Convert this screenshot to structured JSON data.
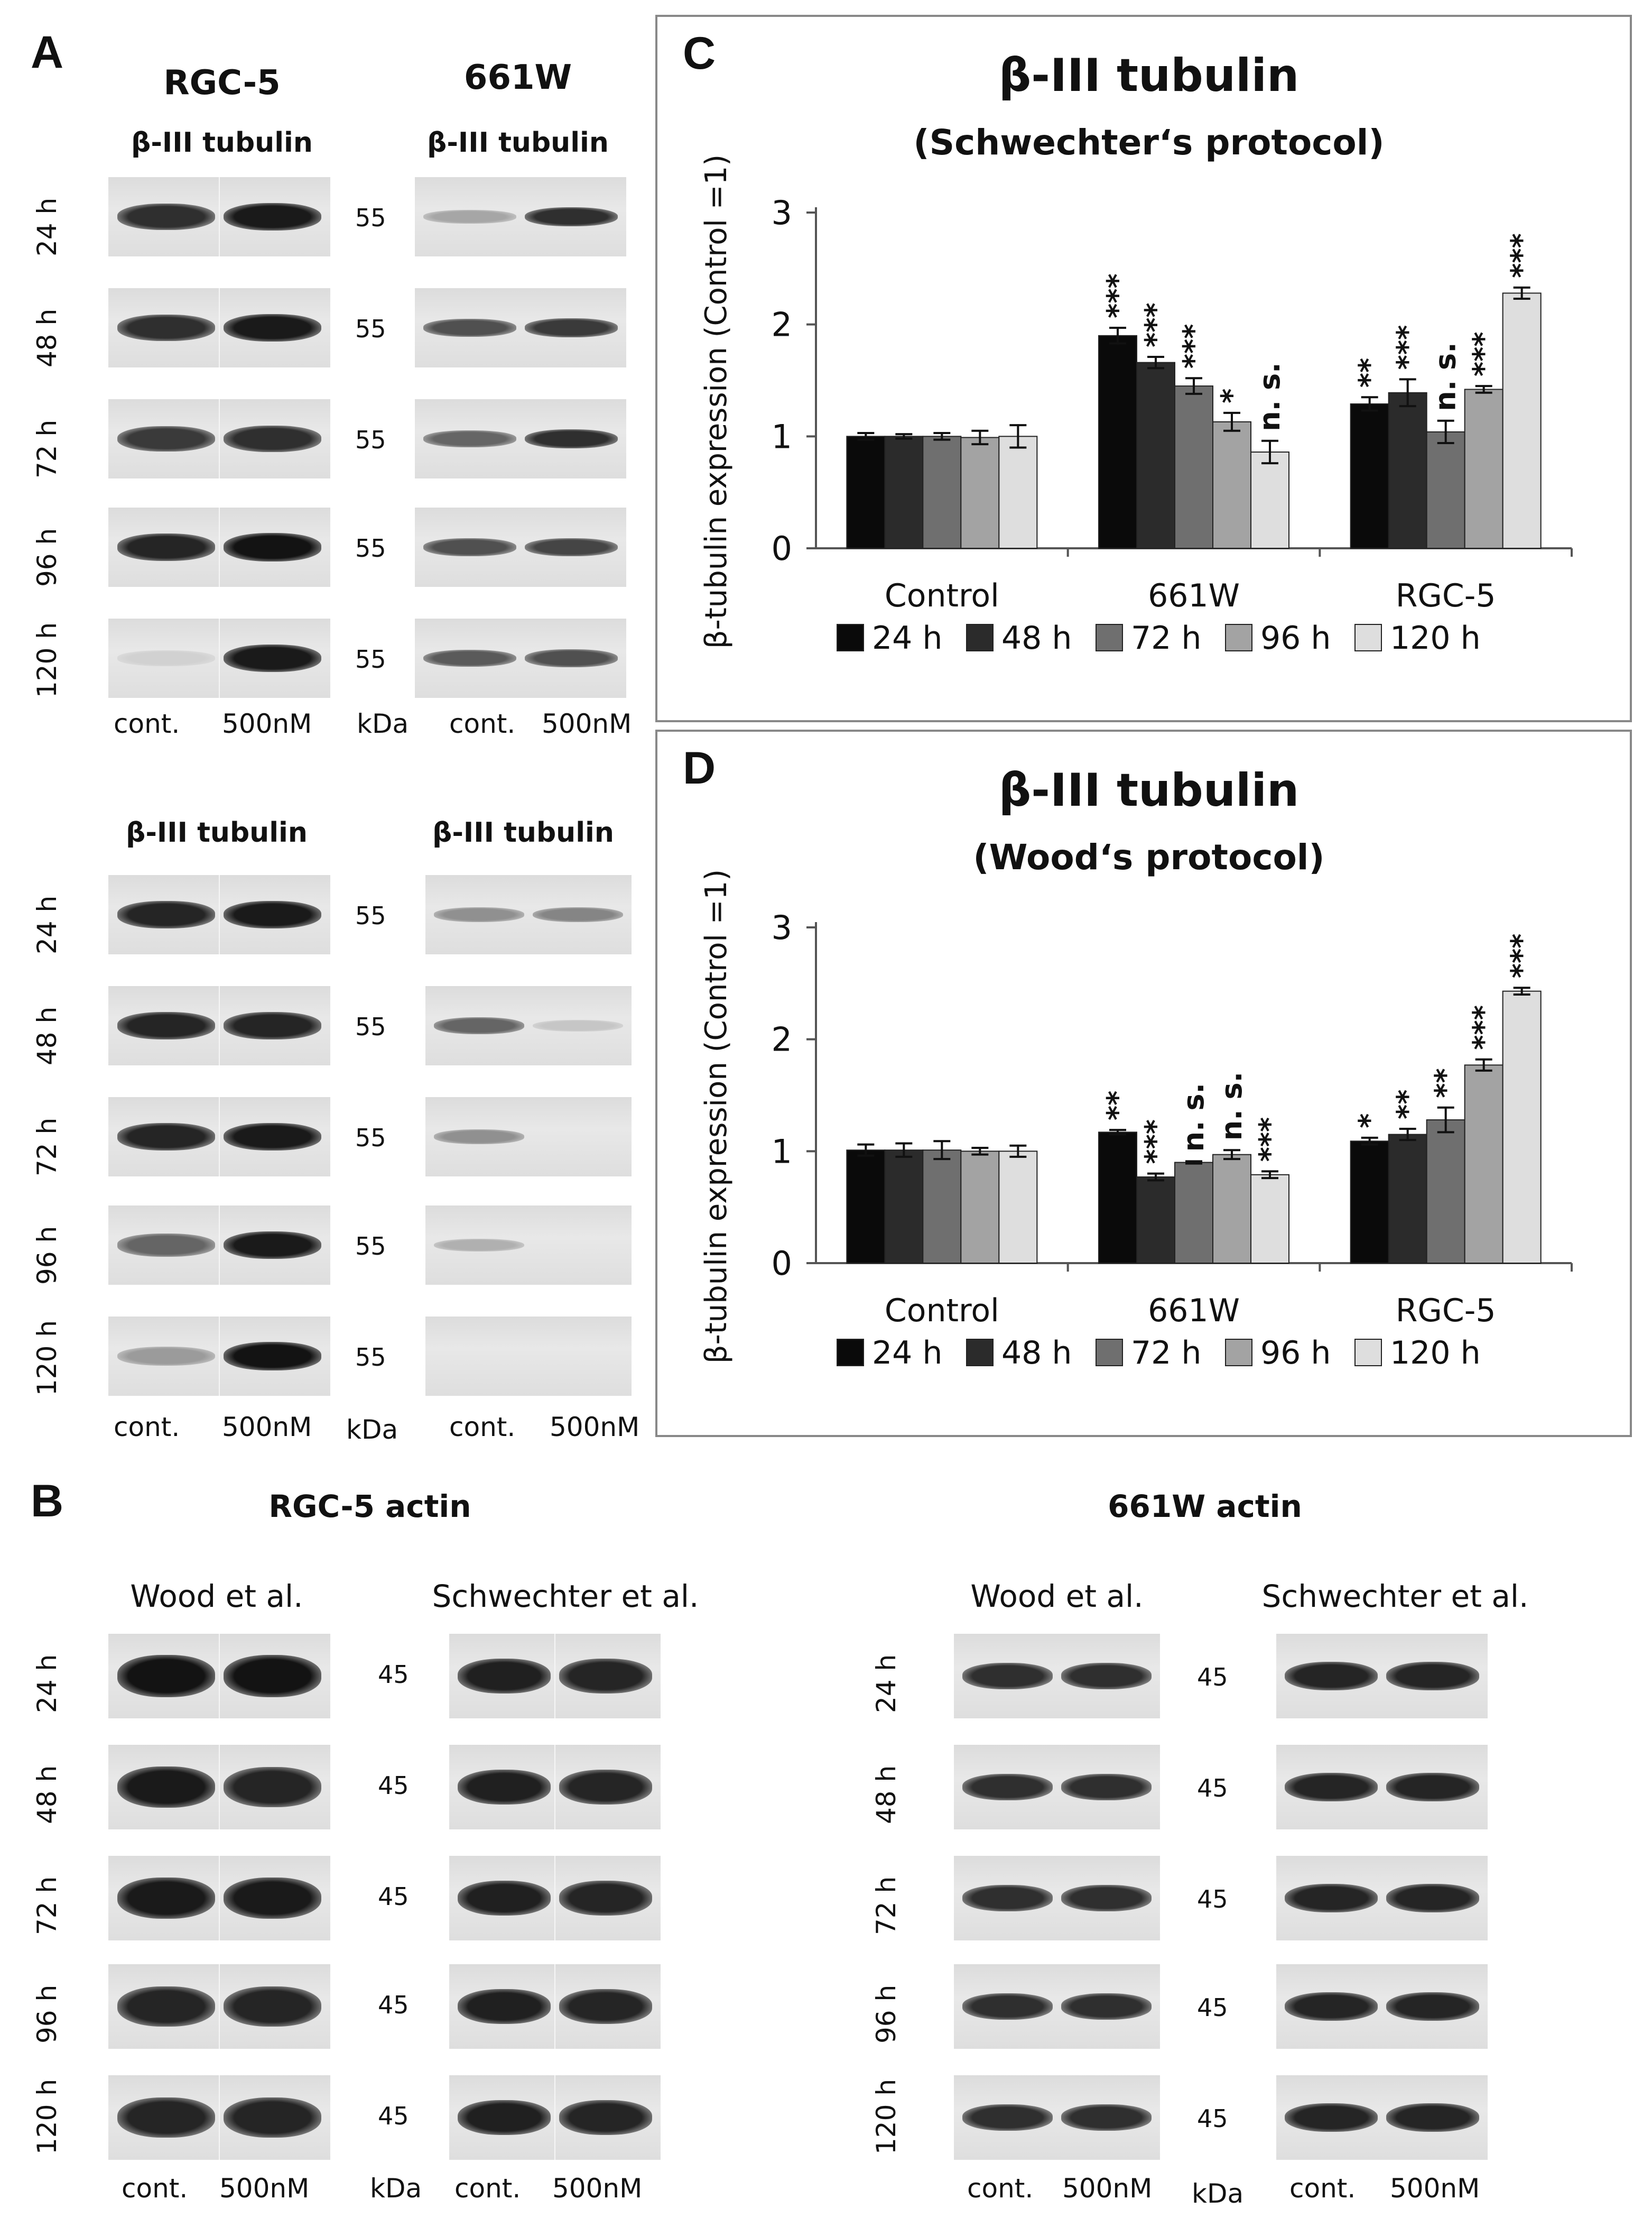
{
  "panel_a": {
    "letter": "A",
    "rgc5_title": "RGC-5",
    "w661_title": "661W",
    "tubulin_label": "β-III tubulin",
    "time_labels": [
      "24 h",
      "48 h",
      "72 h",
      "96 h",
      "120 h"
    ],
    "kda_value": "55",
    "kda_unit": "kDa",
    "lane_control": "cont.",
    "lane_treated": "500nM"
  },
  "panel_b": {
    "letter": "B",
    "rgc5_title": "RGC-5 actin",
    "w661_title": "661W actin",
    "wood_label": "Wood et al.",
    "schwechter_label": "Schwechter et al.",
    "time_labels": [
      "24 h",
      "48 h",
      "72 h",
      "96 h",
      "120 h"
    ],
    "kda_value": "45",
    "kda_unit": "kDa",
    "lane_control": "cont.",
    "lane_treated": "500nM"
  },
  "chart_data": [
    {
      "panel_letter": "C",
      "type": "bar",
      "title": "β-III tubulin",
      "subtitle": "(Schwechter‘s protocol)",
      "xlabel": "",
      "ylabel": "β-tubulin expression (Control =1)",
      "ylim": [
        0,
        3
      ],
      "yticks": [
        "0",
        "1",
        "2",
        "3"
      ],
      "categories": [
        "Control",
        "661W",
        "RGC-5"
      ],
      "series": [
        {
          "name": "24 h",
          "color": "#0a0a0a",
          "values": [
            1.0,
            1.9,
            1.29
          ],
          "errors": [
            0.03,
            0.07,
            0.06
          ],
          "sig": [
            "",
            "***",
            "**"
          ]
        },
        {
          "name": "48 h",
          "color": "#2b2b2b",
          "values": [
            1.0,
            1.66,
            1.39
          ],
          "errors": [
            0.02,
            0.05,
            0.12
          ],
          "sig": [
            "",
            "***",
            "***"
          ]
        },
        {
          "name": "72 h",
          "color": "#6f6f6f",
          "values": [
            1.0,
            1.45,
            1.04
          ],
          "errors": [
            0.03,
            0.07,
            0.1
          ],
          "sig": [
            "",
            "***",
            "n. s."
          ]
        },
        {
          "name": "96 h",
          "color": "#a3a3a3",
          "values": [
            0.99,
            1.13,
            1.42
          ],
          "errors": [
            0.06,
            0.08,
            0.03
          ],
          "sig": [
            "",
            "*",
            "***"
          ]
        },
        {
          "name": "120 h",
          "color": "#dedede",
          "values": [
            1.0,
            0.86,
            2.28
          ],
          "errors": [
            0.1,
            0.1,
            0.05
          ],
          "sig": [
            "",
            "n. s.",
            "***"
          ]
        }
      ],
      "legend": "bottom"
    },
    {
      "panel_letter": "D",
      "type": "bar",
      "title": "β-III tubulin",
      "subtitle": "(Wood‘s protocol)",
      "xlabel": "",
      "ylabel": "β-tubulin expression (Control =1)",
      "ylim": [
        0,
        3
      ],
      "yticks": [
        "0",
        "1",
        "2",
        "3"
      ],
      "categories": [
        "Control",
        "661W",
        "RGC-5"
      ],
      "series": [
        {
          "name": "24 h",
          "color": "#0a0a0a",
          "values": [
            1.01,
            1.17,
            1.09
          ],
          "errors": [
            0.05,
            0.02,
            0.03
          ],
          "sig": [
            "",
            "**",
            "*"
          ]
        },
        {
          "name": "48 h",
          "color": "#2b2b2b",
          "values": [
            1.01,
            0.77,
            1.15
          ],
          "errors": [
            0.06,
            0.03,
            0.05
          ],
          "sig": [
            "",
            "***",
            "**"
          ]
        },
        {
          "name": "72 h",
          "color": "#6f6f6f",
          "values": [
            1.01,
            0.9,
            1.28
          ],
          "errors": [
            0.08,
            0.01,
            0.11
          ],
          "sig": [
            "",
            "n. s.",
            "**"
          ]
        },
        {
          "name": "96 h",
          "color": "#a3a3a3",
          "values": [
            1.0,
            0.97,
            1.77
          ],
          "errors": [
            0.03,
            0.04,
            0.05
          ],
          "sig": [
            "",
            "n. s.",
            "***"
          ]
        },
        {
          "name": "120 h",
          "color": "#dedede",
          "values": [
            1.0,
            0.79,
            2.43
          ],
          "errors": [
            0.05,
            0.03,
            0.03
          ],
          "sig": [
            "",
            "***",
            "***"
          ]
        }
      ],
      "legend": "bottom"
    }
  ]
}
